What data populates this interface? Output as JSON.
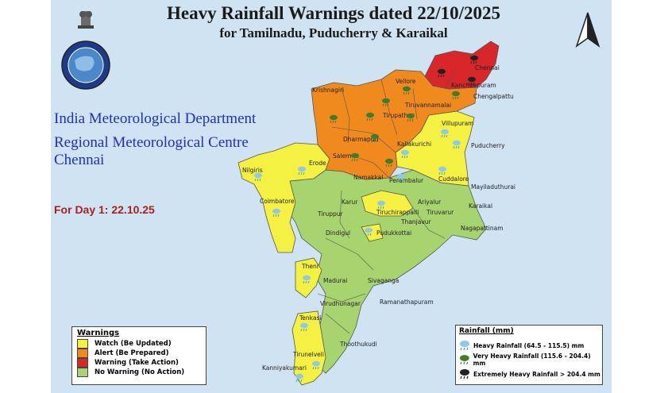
{
  "title": "Heavy Rainfall Warnings dated 22/10/2025",
  "subtitle": "for Tamilnadu, Puducherry & Karaikal",
  "agency": {
    "line1": "India Meteorological Department",
    "line2": "Regional Meteorological Centre",
    "line3": "Chennai"
  },
  "day_label": "For Day 1: 22.10.25",
  "colors": {
    "watch": "#f5f142",
    "alert": "#f08a1e",
    "warning": "#d9262a",
    "no_warning": "#a8d46f",
    "sea": "#cfe3f2"
  },
  "legend": {
    "title": "Warnings",
    "items": [
      {
        "label": "Watch (Be Updated)",
        "color": "#f5f142"
      },
      {
        "label": "Alert (Be Prepared)",
        "color": "#f08a1e"
      },
      {
        "label": "Warning (Take Action)",
        "color": "#d9262a"
      },
      {
        "label": "No Warning (No Action)",
        "color": "#a8d46f"
      }
    ]
  },
  "rainfall_legend": {
    "title": "Rainfall (mm)",
    "items": [
      {
        "label": "Heavy Rainfall (64.5 - 115.5) mm",
        "icon": "cloud-rain-light-icon"
      },
      {
        "label": "Very Heavy Rainfall (115.6 - 204.4) mm",
        "icon": "cloud-rain-green-icon"
      },
      {
        "label": "Extremely Heavy Rainfall > 204.4 mm",
        "icon": "cloud-rain-dark-icon"
      }
    ]
  },
  "districts": {
    "chennai": "Chennai",
    "kancheepuram": "Kancheepuram",
    "chengalpattu": "Chengalpattu",
    "vellore": "Vellore",
    "krishnagiri": "Krishnagiri",
    "tirupathur": "Tirupathur",
    "tiruvannamalai": "Tiruvannamalai",
    "villupuram": "Villupuram",
    "dharmapuri": "Dharmapuri",
    "kallakurichi": "Kallakurichi",
    "puducherry": "Puducherry",
    "salem": "Salem",
    "nilgiris": "Nilgiris",
    "erode": "Erode",
    "namakkal": "Namakkal",
    "perambalur": "Perambalur",
    "cuddalore": "Cuddalore",
    "mayiladuthurai": "Mayiladuthurai",
    "coimbatore": "Coimbatore",
    "karur": "Karur",
    "ariyalur": "Ariyalur",
    "tiruppur": "Tiruppur",
    "tiruchirappalli": "Tiruchirappalli",
    "thanjavur": "Thanjavur",
    "tiruvarur": "Tiruvarur",
    "karaikal": "Karaikal",
    "nagapattinam": "Nagapattinam",
    "dindigul": "Dindigul",
    "pudukkottai": "Pudukkottai",
    "theni": "Theni",
    "madurai": "Madurai",
    "sivaganga": "Sivaganga",
    "virudhunagar": "Virudhunagar",
    "ramanathapuram": "Ramanathapuram",
    "tenkasi": "Tenkasi",
    "thoothukudi": "Thoothukudi",
    "tirunelveli": "Tirunelveli",
    "kanniyakumari": "Kanniyakumari"
  }
}
